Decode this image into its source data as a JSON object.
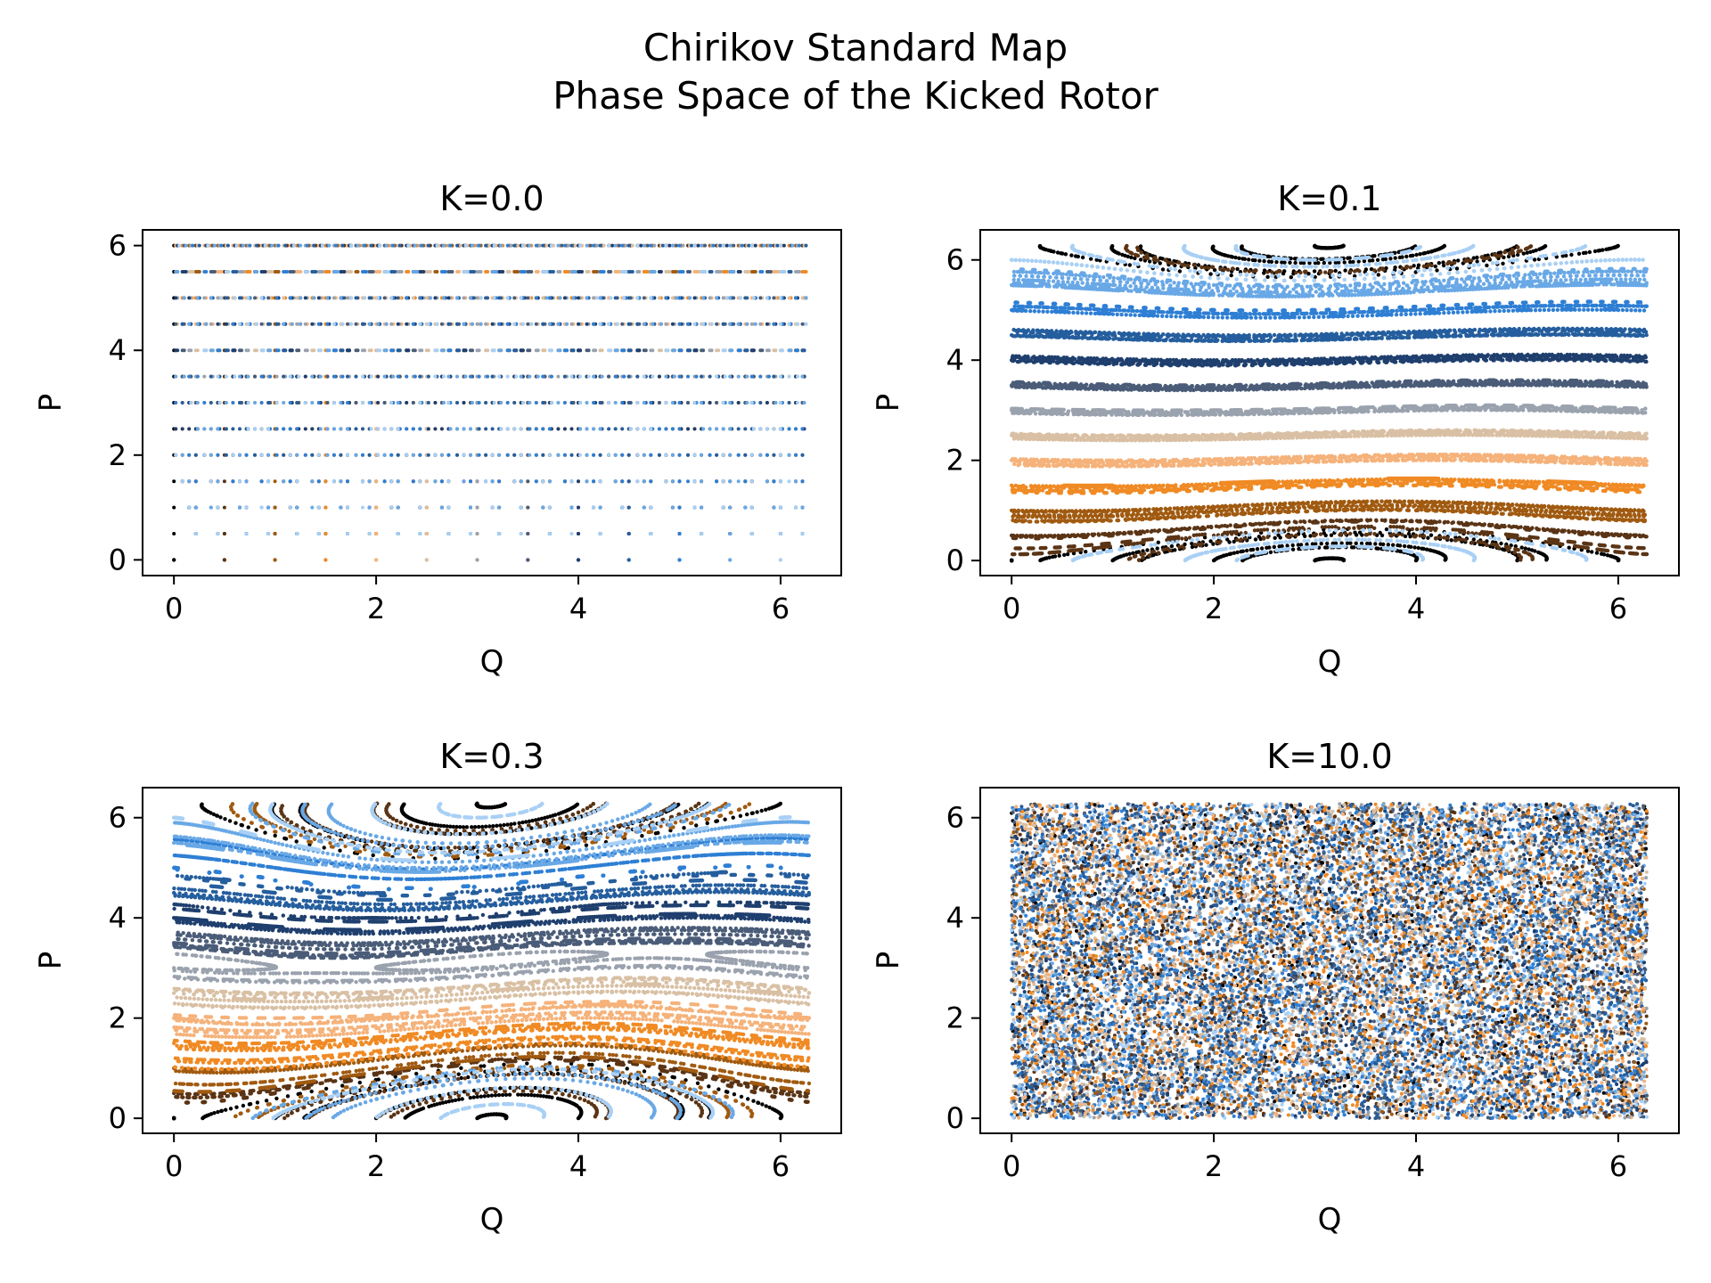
{
  "figure": {
    "suptitle_line1": "Chirikov Standard Map",
    "suptitle_line2": "Phase Space of the Kicked Rotor",
    "background": "#ffffff"
  },
  "chart_data": [
    {
      "type": "scatter",
      "title": "K=0.0",
      "K": 0.0,
      "xlabel": "Q",
      "ylabel": "P",
      "xlim": [
        -0.31,
        6.6
      ],
      "ylim": [
        -0.3,
        6.3
      ],
      "xticks": [
        0,
        2,
        4,
        6
      ],
      "yticks": [
        0,
        2,
        4,
        6
      ],
      "grid": false,
      "legend": "none",
      "initial_P": [
        0,
        0.5,
        1,
        1.5,
        2,
        2.5,
        3,
        3.5,
        4,
        4.5,
        5,
        5.5,
        6
      ],
      "initial_Q": [
        0,
        0.5,
        1,
        1.5,
        2,
        2.5,
        3,
        3.5,
        4,
        4.5,
        5,
        5.5,
        6
      ],
      "colormap": [
        "#000000",
        "#5a3415",
        "#a05a10",
        "#f08a24",
        "#f5b27a",
        "#d9c0a4",
        "#9aa2ae",
        "#4a5c78",
        "#1f3f6e",
        "#255e9e",
        "#2e7fd4",
        "#69a8e6",
        "#a9d0f5"
      ]
    },
    {
      "type": "scatter",
      "title": "K=0.1",
      "K": 0.1,
      "xlabel": "Q",
      "ylabel": "P",
      "xlim": [
        -0.31,
        6.6
      ],
      "ylim": [
        -0.3,
        6.6
      ],
      "xticks": [
        0,
        2,
        4,
        6
      ],
      "yticks": [
        0,
        2,
        4,
        6
      ],
      "grid": false,
      "legend": "none"
    },
    {
      "type": "scatter",
      "title": "K=0.3",
      "K": 0.3,
      "xlabel": "Q",
      "ylabel": "P",
      "xlim": [
        -0.31,
        6.6
      ],
      "ylim": [
        -0.3,
        6.6
      ],
      "xticks": [
        0,
        2,
        4,
        6
      ],
      "yticks": [
        0,
        2,
        4,
        6
      ],
      "grid": false,
      "legend": "none"
    },
    {
      "type": "scatter",
      "title": "K=10.0",
      "K": 10.0,
      "xlabel": "Q",
      "ylabel": "P",
      "xlim": [
        -0.31,
        6.6
      ],
      "ylim": [
        -0.3,
        6.6
      ],
      "xticks": [
        0,
        2,
        4,
        6
      ],
      "yticks": [
        0,
        2,
        4,
        6
      ],
      "grid": false,
      "legend": "none"
    }
  ]
}
